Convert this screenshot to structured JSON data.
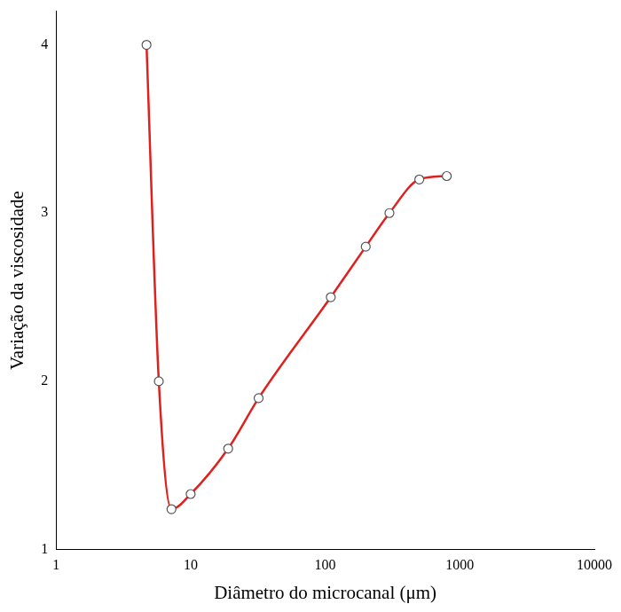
{
  "chart_data": {
    "type": "line",
    "xlabel": "Diâmetro do microcanal (μm)",
    "ylabel": "Variação da viscosidade",
    "x": [
      4.7,
      5.8,
      7.2,
      10,
      19,
      32,
      110,
      200,
      300,
      500,
      800
    ],
    "values": [
      4.0,
      2.0,
      1.24,
      1.33,
      1.6,
      1.9,
      2.5,
      2.8,
      3.0,
      3.2,
      3.22
    ],
    "color": "#e0201c",
    "marker": "circle",
    "log": "x",
    "grid": false,
    "xlim": [
      1,
      10000
    ],
    "xticks": [
      1,
      10,
      100,
      1000,
      10000
    ],
    "ylim": [
      1,
      4.2
    ],
    "yticks": [
      1,
      2,
      3,
      4
    ]
  }
}
